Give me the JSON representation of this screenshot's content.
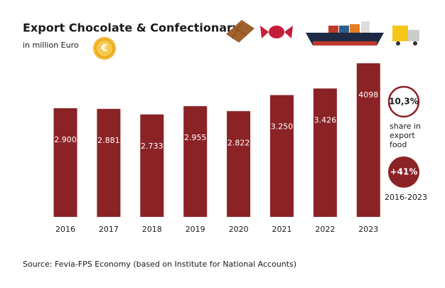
{
  "chart_data": {
    "type": "bar",
    "title": "Export Chocolate & Confectionary",
    "subtitle": "in million Euro",
    "categories": [
      "2016",
      "2017",
      "2018",
      "2019",
      "2020",
      "2021",
      "2022",
      "2023"
    ],
    "values": [
      2900,
      2881,
      2733,
      2955,
      2822,
      3250,
      3426,
      4098
    ],
    "value_labels": [
      "2.900",
      "2.881",
      "2.733",
      "2.955",
      "2.822",
      "3.250",
      "3.426",
      "4098"
    ],
    "color": "#8b2226",
    "callouts": [
      {
        "text": "10,3%",
        "caption": [
          "share in",
          "export",
          "food"
        ]
      },
      {
        "text": "+41%",
        "caption": [
          "2016-2023"
        ]
      }
    ],
    "source": "Source: Fevia-FPS Economy (based on Institute for National Accounts)"
  }
}
